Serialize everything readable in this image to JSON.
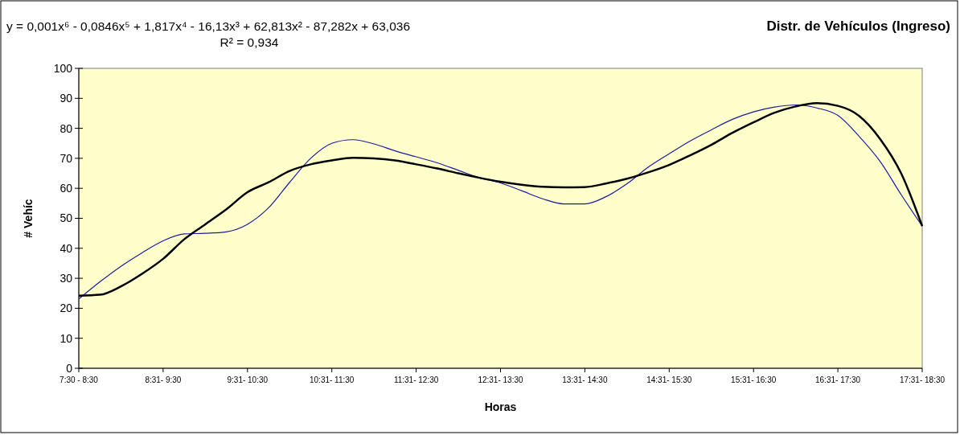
{
  "chart_data": {
    "type": "line",
    "title": "Distr. de Vehículos (Ingreso)",
    "xlabel": "Horas",
    "ylabel": "# Vehíc",
    "annotations": [
      "y = 0,001x⁶ - 0,0846x⁵ + 1,817x⁴ - 16,13x³ + 62,813x² - 87,282x + 63,036",
      "R² = 0,934"
    ],
    "categories": [
      "7:30 - 8:30",
      null,
      null,
      null,
      "8:31- 9:30",
      null,
      null,
      null,
      "9:31- 10:30",
      null,
      null,
      null,
      "10:31- 11:30",
      null,
      null,
      null,
      "11:31- 12:30",
      null,
      null,
      null,
      "12:31- 13:30",
      null,
      null,
      null,
      "13:31- 14:30",
      null,
      null,
      null,
      "14:31- 15:30",
      null,
      null,
      null,
      "15:31- 16:30",
      null,
      null,
      null,
      "16:31- 17:30",
      null,
      null,
      null,
      "17:31- 18:30"
    ],
    "series": [
      {
        "color": "#1c1ca0",
        "values": [
          23.1,
          28.8,
          34,
          38.5,
          42.5,
          44.8,
          45,
          45.5,
          48,
          53.5,
          62,
          70,
          75,
          76.2,
          74.8,
          72.5,
          70.5,
          68.5,
          66,
          63.5,
          61.8,
          59.2,
          56.5,
          54.8,
          54.8,
          57.2,
          61.5,
          67,
          71.5,
          75.8,
          79.5,
          83,
          85.5,
          87.1,
          87.8,
          86.8,
          84.3,
          77.4,
          69,
          57.9,
          47.4
        ]
      },
      {
        "type": "line",
        "color": "#000000",
        "values": [
          24.2,
          24.5,
          27.3,
          31.5,
          36.5,
          43,
          48,
          53,
          58.7,
          62,
          65.8,
          68,
          69.3,
          70.2,
          70,
          69.3,
          68,
          66.6,
          65,
          63.5,
          62.2,
          61.2,
          60.5,
          60.3,
          60.4,
          61.6,
          63.2,
          65.3,
          67.8,
          71,
          74.5,
          78.5,
          82,
          85.2,
          87.3,
          88.4,
          87.5,
          84.2,
          76.5,
          65,
          47.4
        ]
      }
    ],
    "ylim": [
      0,
      100
    ],
    "yticks": [
      0,
      10,
      20,
      30,
      40,
      50,
      60,
      70,
      80,
      90,
      100
    ]
  }
}
